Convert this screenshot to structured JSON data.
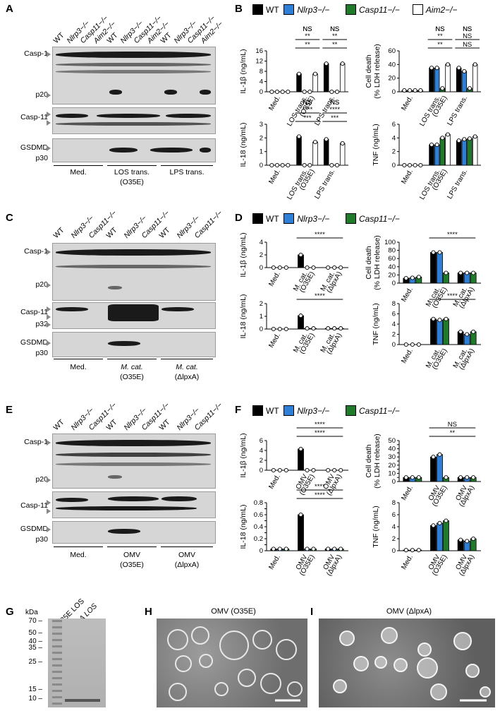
{
  "panels": {
    "A": "A",
    "B": "B",
    "C": "C",
    "D": "D",
    "E": "E",
    "F": "F",
    "G": "G",
    "H": "H",
    "I": "I"
  },
  "colors": {
    "wt": "#000000",
    "nlrp3": "#2f7fd6",
    "casp11": "#1f7a2a",
    "aim2": "#ffffff"
  },
  "blot_labels": {
    "casp1": "Casp-1",
    "p20": "p20",
    "casp11": "Casp-11",
    "p32": "p32",
    "gsdmd": "GSDMD",
    "p30": "p30"
  },
  "panelA": {
    "lanes": [
      "WT",
      "Nlrp3−/−",
      "Casp11−/−",
      "Aim2−/−",
      "WT",
      "Nlrp3−/−",
      "Casp11−/−",
      "Aim2−/−",
      "WT",
      "Nlrp3−/−",
      "Casp11−/−",
      "Aim2−/−"
    ],
    "groups": [
      "Med.",
      "LOS trans.",
      "(O35E)",
      "LPS trans."
    ]
  },
  "panelC": {
    "lanes": [
      "WT",
      "Nlrp3−/−",
      "Casp11−/−",
      "WT",
      "Nlrp3−/−",
      "Casp11−/−",
      "WT",
      "Nlrp3−/−",
      "Casp11−/−"
    ],
    "groups": [
      "Med.",
      "M. cat.",
      "(O35E)",
      "M. cat.",
      "(ΔlpxA)"
    ]
  },
  "panelE": {
    "lanes": [
      "WT",
      "Nlrp3−/−",
      "Casp11−/−",
      "WT",
      "Nlrp3−/−",
      "Casp11−/−",
      "WT",
      "Nlrp3−/−",
      "Casp11−/−"
    ],
    "groups": [
      "Med.",
      "OMV",
      "(O35E)",
      "OMV",
      "(ΔlpxA)"
    ]
  },
  "legend_B": [
    "WT",
    "Nlrp3−/−",
    "Casp11−/−",
    "Aim2−/−"
  ],
  "legend_D": [
    "WT",
    "Nlrp3−/−",
    "Casp11−/−"
  ],
  "legend_F": [
    "WT",
    "Nlrp3−/−",
    "Casp11−/−"
  ],
  "chart_data": [
    {
      "id": "B-IL1b",
      "type": "bar",
      "ylabel": "IL-1β (ng/mL)",
      "ylim": [
        0,
        16
      ],
      "yticks": [
        0,
        4,
        8,
        12,
        16
      ],
      "categories": [
        "Med.",
        "LOS trans. (O35E)",
        "LPS trans."
      ],
      "series": [
        {
          "name": "WT",
          "values": [
            0,
            7,
            11
          ]
        },
        {
          "name": "Nlrp3−/−",
          "values": [
            0,
            0,
            0
          ]
        },
        {
          "name": "Casp11−/−",
          "values": [
            0,
            0,
            0
          ]
        },
        {
          "name": "Aim2−/−",
          "values": [
            0,
            7,
            11
          ]
        }
      ],
      "sig": [
        [
          "NS",
          "**",
          "**"
        ],
        [
          "NS",
          "**",
          "**"
        ]
      ]
    },
    {
      "id": "B-LDH",
      "type": "bar",
      "ylabel": "Cell death (% LDH release)",
      "ylim": [
        0,
        60
      ],
      "yticks": [
        0,
        20,
        40,
        60
      ],
      "categories": [
        "Med.",
        "LOS trans. (O35E)",
        "LPS trans."
      ],
      "series": [
        {
          "name": "WT",
          "values": [
            2,
            35,
            35
          ]
        },
        {
          "name": "Nlrp3−/−",
          "values": [
            2,
            35,
            30
          ]
        },
        {
          "name": "Casp11−/−",
          "values": [
            2,
            5,
            5
          ]
        },
        {
          "name": "Aim2−/−",
          "values": [
            2,
            40,
            40
          ]
        }
      ],
      "sig": [
        [
          "NS",
          "**",
          "NS"
        ],
        [
          "NS",
          "**",
          "NS"
        ]
      ]
    },
    {
      "id": "B-IL18",
      "type": "bar",
      "ylabel": "IL-18 (ng/mL)",
      "ylim": [
        0,
        3
      ],
      "yticks": [
        0,
        1,
        2,
        3
      ],
      "categories": [
        "Med.",
        "LOS trans. (O35E)",
        "LPS trans."
      ],
      "series": [
        {
          "name": "WT",
          "values": [
            0,
            2.1,
            1.9
          ]
        },
        {
          "name": "Nlrp3−/−",
          "values": [
            0,
            0,
            0
          ]
        },
        {
          "name": "Casp11−/−",
          "values": [
            0,
            0,
            0
          ]
        },
        {
          "name": "Aim2−/−",
          "values": [
            0,
            1.7,
            1.6
          ]
        }
      ],
      "sig": [
        [
          "NS",
          "***",
          "***"
        ],
        [
          "NS",
          "****",
          "****"
        ]
      ]
    },
    {
      "id": "B-TNF",
      "type": "bar",
      "ylabel": "TNF (ng/mL)",
      "ylim": [
        0,
        6
      ],
      "yticks": [
        0,
        2,
        4,
        6
      ],
      "categories": [
        "Med.",
        "LOS trans. (O35E)",
        "LPS trans."
      ],
      "series": [
        {
          "name": "WT",
          "values": [
            0,
            3,
            3.6
          ]
        },
        {
          "name": "Nlrp3−/−",
          "values": [
            0,
            3,
            3.8
          ]
        },
        {
          "name": "Casp11−/−",
          "values": [
            0,
            4,
            3.9
          ]
        },
        {
          "name": "Aim2−/−",
          "values": [
            0,
            4.5,
            4.2
          ]
        }
      ]
    },
    {
      "id": "D-IL1b",
      "type": "bar",
      "ylabel": "IL-1β (ng/mL)",
      "ylim": [
        0,
        4
      ],
      "yticks": [
        0,
        2,
        4
      ],
      "categories": [
        "Med.",
        "M. cat. (O35E)",
        "M. cat. (ΔlpxA)"
      ],
      "series": [
        {
          "name": "WT",
          "values": [
            0,
            2,
            0
          ]
        },
        {
          "name": "Nlrp3−/−",
          "values": [
            0,
            0,
            0
          ]
        },
        {
          "name": "Casp11−/−",
          "values": [
            0,
            0,
            0
          ]
        }
      ],
      "sig_label": "****"
    },
    {
      "id": "D-LDH",
      "type": "bar",
      "ylabel": "Cell death (% LDH release)",
      "ylim": [
        0,
        100
      ],
      "yticks": [
        0,
        20,
        40,
        60,
        80,
        100
      ],
      "categories": [
        "Med.",
        "M. cat. (O35E)",
        "M. cat. (ΔlpxA)"
      ],
      "series": [
        {
          "name": "WT",
          "values": [
            12,
            75,
            25
          ]
        },
        {
          "name": "Nlrp3−/−",
          "values": [
            13,
            75,
            25
          ]
        },
        {
          "name": "Casp11−/−",
          "values": [
            15,
            25,
            25
          ]
        }
      ],
      "sig_label": "****"
    },
    {
      "id": "D-IL18",
      "type": "bar",
      "ylabel": "IL-18 (ng/mL)",
      "ylim": [
        0,
        2
      ],
      "yticks": [
        0,
        1,
        2
      ],
      "categories": [
        "Med.",
        "M. cat. (O35E)",
        "M. cat. (ΔlpxA)"
      ],
      "series": [
        {
          "name": "WT",
          "values": [
            0,
            1.05,
            0.05
          ]
        },
        {
          "name": "Nlrp3−/−",
          "values": [
            0,
            0.05,
            0.05
          ]
        },
        {
          "name": "Casp11−/−",
          "values": [
            0,
            0.05,
            0.05
          ]
        }
      ],
      "sig_label": "****"
    },
    {
      "id": "D-TNF",
      "type": "bar",
      "ylabel": "TNF (ng/mL)",
      "ylim": [
        0,
        8
      ],
      "yticks": [
        0,
        2,
        4,
        6,
        8
      ],
      "categories": [
        "Med.",
        "M. cat. (O35E)",
        "M. cat. (ΔlpxA)"
      ],
      "series": [
        {
          "name": "WT",
          "values": [
            0,
            5,
            2.5
          ]
        },
        {
          "name": "Nlrp3−/−",
          "values": [
            0,
            4.8,
            2
          ]
        },
        {
          "name": "Casp11−/−",
          "values": [
            0,
            5,
            2.5
          ]
        }
      ],
      "sig_label": "****"
    },
    {
      "id": "F-IL1b",
      "type": "bar",
      "ylabel": "IL-1β (ng/mL)",
      "ylim": [
        0,
        6
      ],
      "yticks": [
        0,
        2,
        4,
        6
      ],
      "categories": [
        "Med.",
        "OMV (O35E)",
        "OMV (ΔlpxA)"
      ],
      "series": [
        {
          "name": "WT",
          "values": [
            0,
            4.3,
            0
          ]
        },
        {
          "name": "Nlrp3−/−",
          "values": [
            0,
            0,
            0
          ]
        },
        {
          "name": "Casp11−/−",
          "values": [
            0,
            0,
            0
          ]
        }
      ],
      "sig": [
        "****",
        "****"
      ]
    },
    {
      "id": "F-LDH",
      "type": "bar",
      "ylabel": "Cell death (% LDH release)",
      "ylim": [
        0,
        50
      ],
      "yticks": [
        0,
        5,
        10,
        15,
        20,
        25,
        30,
        35,
        40,
        45,
        50
      ],
      "categories": [
        "Med.",
        "OMV (O35E)",
        "OMV (ΔlpxA)"
      ],
      "series": [
        {
          "name": "WT",
          "values": [
            5,
            30,
            5
          ]
        },
        {
          "name": "Nlrp3−/−",
          "values": [
            5,
            33,
            5
          ]
        },
        {
          "name": "Casp11−/−",
          "values": [
            5,
            5,
            5
          ]
        }
      ],
      "sig": [
        "**",
        "NS"
      ]
    },
    {
      "id": "F-IL18",
      "type": "bar",
      "ylabel": "IL-18 (ng/mL)",
      "ylim": [
        0,
        0.8
      ],
      "yticks": [
        0,
        0.1,
        0.2,
        0.3,
        0.4,
        0.5,
        0.6,
        0.7,
        0.8
      ],
      "categories": [
        "Med.",
        "OMV (O35E)",
        "OMV (ΔlpxA)"
      ],
      "series": [
        {
          "name": "WT",
          "values": [
            0.03,
            0.6,
            0.03
          ]
        },
        {
          "name": "Nlrp3−/−",
          "values": [
            0.03,
            0.03,
            0.03
          ]
        },
        {
          "name": "Casp11−/−",
          "values": [
            0.03,
            0.03,
            0.03
          ]
        }
      ],
      "sig": [
        "****",
        "****"
      ]
    },
    {
      "id": "F-TNF",
      "type": "bar",
      "ylabel": "TNF (ng/mL)",
      "ylim": [
        0,
        8
      ],
      "yticks": [
        0,
        2,
        4,
        6,
        8
      ],
      "categories": [
        "Med.",
        "OMV (O35E)",
        "OMV (ΔlpxA)"
      ],
      "series": [
        {
          "name": "WT",
          "values": [
            0.1,
            4.2,
            1.8
          ]
        },
        {
          "name": "Nlrp3−/−",
          "values": [
            0.1,
            4.6,
            1.6
          ]
        },
        {
          "name": "Casp11−/−",
          "values": [
            0.1,
            5,
            2
          ]
        }
      ]
    }
  ],
  "panelG": {
    "kda_label": "kDa",
    "markers": [
      "70",
      "50",
      "40",
      "35",
      "25",
      "15",
      "10"
    ],
    "lanes": [
      "O35E LOS",
      "ΔlpxA LOS"
    ]
  },
  "panelH": {
    "title": "OMV (O35E)"
  },
  "panelI": {
    "title": "OMV (ΔlpxA)"
  }
}
